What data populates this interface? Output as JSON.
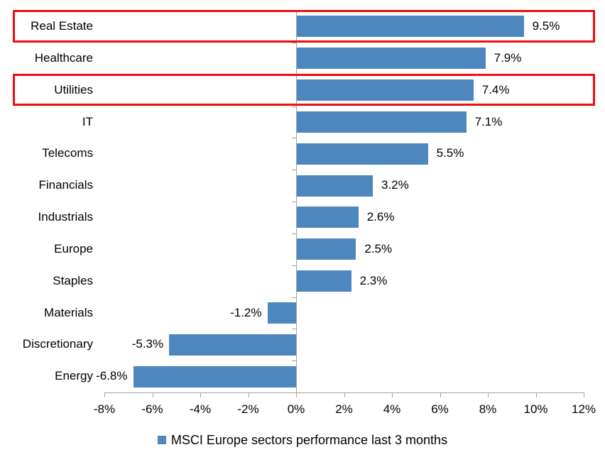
{
  "chart_data": {
    "type": "bar",
    "orientation": "horizontal",
    "categories": [
      "Real Estate",
      "Healthcare",
      "Utilities",
      "IT",
      "Telecoms",
      "Financials",
      "Industrials",
      "Europe",
      "Staples",
      "Materials",
      "Discretionary",
      "Energy"
    ],
    "values": [
      9.5,
      7.9,
      7.4,
      7.1,
      5.5,
      3.2,
      2.6,
      2.5,
      2.3,
      -1.2,
      -5.3,
      -6.8
    ],
    "value_labels": [
      "9.5%",
      "7.9%",
      "7.4%",
      "7.1%",
      "5.5%",
      "3.2%",
      "2.6%",
      "2.5%",
      "2.3%",
      "-1.2%",
      "-5.3%",
      "-6.8%"
    ],
    "x_ticks": [
      {
        "value": -8,
        "label": "-8%"
      },
      {
        "value": -6,
        "label": "-6%"
      },
      {
        "value": -4,
        "label": "-4%"
      },
      {
        "value": -2,
        "label": "-2%"
      },
      {
        "value": 0,
        "label": "0%"
      },
      {
        "value": 2,
        "label": "2%"
      },
      {
        "value": 4,
        "label": "4%"
      },
      {
        "value": 6,
        "label": "6%"
      },
      {
        "value": 8,
        "label": "8%"
      },
      {
        "value": 10,
        "label": "10%"
      },
      {
        "value": 12,
        "label": "12%"
      }
    ],
    "xlim": [
      -8,
      12
    ],
    "grid": false,
    "legend": "MSCI Europe sectors performance last 3 months",
    "legend_position": "bottom-center",
    "highlighted_categories": [
      "Real Estate",
      "Utilities"
    ],
    "colors": {
      "bar": "#4E86BE",
      "axis": "#A3A3A3",
      "highlight_border": "#F20D0D",
      "text": "#000000"
    }
  }
}
